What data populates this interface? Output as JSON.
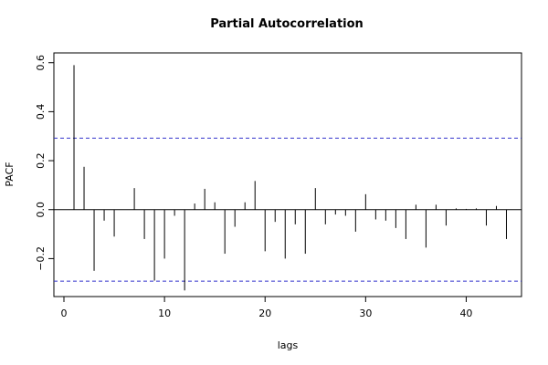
{
  "chart_data": {
    "type": "bar",
    "title": "Partial Autocorrelation",
    "xlabel": "lags",
    "ylabel": "PACF",
    "xlim": [
      -1,
      45.5
    ],
    "ylim": [
      -0.355,
      0.64
    ],
    "x_ticks": [
      0,
      10,
      20,
      30,
      40
    ],
    "y_ticks": [
      -0.2,
      0.0,
      0.2,
      0.4,
      0.6
    ],
    "confidence_bounds": [
      0.292,
      -0.292
    ],
    "confidence_line_color": "#3333cc",
    "grid": false,
    "legend": "none",
    "lags": [
      1,
      2,
      3,
      4,
      5,
      6,
      7,
      8,
      9,
      10,
      11,
      12,
      13,
      14,
      15,
      16,
      17,
      18,
      19,
      20,
      21,
      22,
      23,
      24,
      25,
      26,
      27,
      28,
      29,
      30,
      31,
      32,
      33,
      34,
      35,
      36,
      37,
      38,
      39,
      40,
      41,
      42,
      43,
      44
    ],
    "values": [
      0.59,
      0.175,
      -0.25,
      -0.045,
      -0.11,
      0.0,
      0.088,
      -0.12,
      -0.29,
      -0.2,
      -0.025,
      -0.33,
      0.025,
      0.085,
      0.03,
      -0.18,
      -0.07,
      0.03,
      0.117,
      -0.17,
      -0.05,
      -0.2,
      -0.06,
      -0.18,
      0.088,
      -0.06,
      -0.02,
      -0.025,
      -0.09,
      0.063,
      -0.04,
      -0.045,
      -0.075,
      -0.12,
      0.02,
      -0.155,
      0.02,
      -0.065,
      0.005,
      0.003,
      0.005,
      -0.065,
      0.015,
      -0.12
    ]
  }
}
